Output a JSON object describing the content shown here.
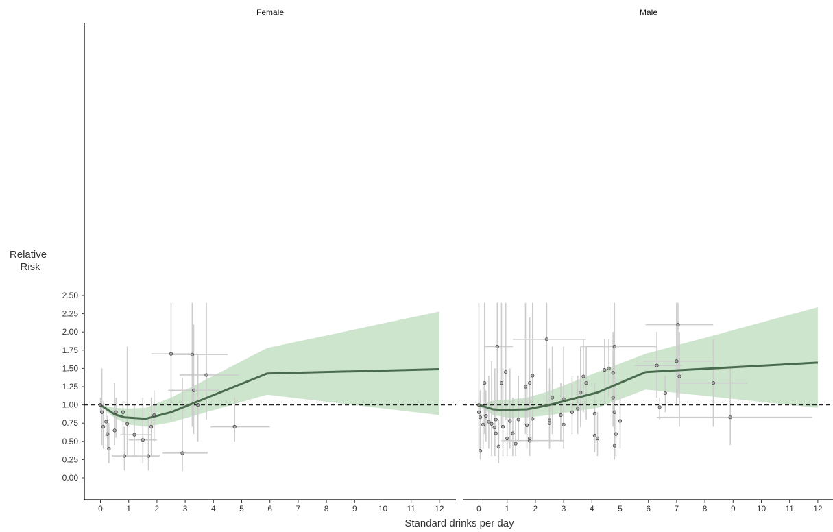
{
  "chart_data": {
    "type": "line",
    "xlabel": "Standard drinks per day",
    "ylabel_lines": [
      "Relative",
      "Risk"
    ],
    "ylim": [
      0,
      2.5
    ],
    "xlim": [
      -0.5,
      12.5
    ],
    "y_ticks": [
      "0.00",
      "0.25",
      "0.50",
      "0.75",
      "1.00",
      "1.25",
      "1.50",
      "1.75",
      "2.00",
      "2.25",
      "2.50"
    ],
    "x_ticks": [
      "0",
      "1",
      "2",
      "3",
      "4",
      "5",
      "6",
      "7",
      "8",
      "9",
      "10",
      "11",
      "12"
    ],
    "reference_line": 1.0,
    "colors": {
      "line": "#4a6b4e",
      "band": "#cde5cd",
      "points": "#777777",
      "error_bars": "#cccccc",
      "reference": "#222222"
    },
    "panels": [
      {
        "title": "Female",
        "curve": {
          "x": [
            0,
            0.5,
            0.85,
            1.6,
            2.5,
            5.9,
            12
          ],
          "y": [
            1.0,
            0.87,
            0.83,
            0.81,
            0.9,
            1.43,
            1.49
          ]
        },
        "band": {
          "x": [
            0,
            0.5,
            1.0,
            1.6,
            2.5,
            5.9,
            12
          ],
          "lower": [
            0.98,
            0.82,
            0.73,
            0.7,
            0.76,
            1.14,
            0.86
          ],
          "upper": [
            1.0,
            0.96,
            0.95,
            0.96,
            1.1,
            1.78,
            2.28
          ]
        },
        "points": [
          {
            "x": 0.0,
            "y": 1.0,
            "yl": 0.9,
            "yu": 1.1
          },
          {
            "x": 0.05,
            "y": 0.9,
            "yl": 0.45,
            "yu": 1.5
          },
          {
            "x": 0.1,
            "y": 0.7,
            "yl": 0.4,
            "yu": 1.05
          },
          {
            "x": 0.2,
            "y": 0.77,
            "yl": 0.55,
            "yu": 1.0
          },
          {
            "x": 0.25,
            "y": 0.6,
            "yl": 0.4,
            "yu": 0.85
          },
          {
            "x": 0.3,
            "y": 0.4,
            "yl": 0.2,
            "yu": 0.75
          },
          {
            "x": 0.5,
            "y": 0.65,
            "yl": 0.45,
            "yu": 1.3
          },
          {
            "x": 0.55,
            "y": 0.9,
            "yl": 0.55,
            "yu": 1.1
          },
          {
            "x": 0.8,
            "y": 0.9,
            "yl": 0.6,
            "yu": 1.05
          },
          {
            "x": 0.85,
            "y": 0.3,
            "yl": 0.1,
            "yu": 0.7,
            "xl": 0.4,
            "xu": 1.3
          },
          {
            "x": 0.95,
            "y": 0.74,
            "yl": 0.3,
            "yu": 1.8
          },
          {
            "x": 1.2,
            "y": 0.59,
            "yl": 0.3,
            "yu": 1.0,
            "xl": 0.7,
            "xu": 1.8
          },
          {
            "x": 1.5,
            "y": 0.52,
            "yl": 0.2,
            "yu": 1.1,
            "xl": 1.0,
            "xu": 2.0
          },
          {
            "x": 1.7,
            "y": 0.3,
            "yl": 0.1,
            "yu": 0.8,
            "xl": 1.1,
            "xu": 2.1
          },
          {
            "x": 1.8,
            "y": 0.7,
            "yl": 0.3,
            "yu": 1.1
          },
          {
            "x": 1.9,
            "y": 0.86,
            "yl": 0.5,
            "yu": 1.2
          },
          {
            "x": 2.5,
            "y": 1.7,
            "yl": 0.8,
            "yu": 2.4,
            "xl": 1.8,
            "xu": 3.2
          },
          {
            "x": 2.9,
            "y": 0.34,
            "yl": 0.09,
            "yu": 1.37,
            "xl": 2.2,
            "xu": 3.8
          },
          {
            "x": 3.25,
            "y": 1.69,
            "yl": 0.7,
            "yu": 2.4,
            "xl": 2.5,
            "xu": 4.5
          },
          {
            "x": 3.3,
            "y": 1.2,
            "yl": 0.6,
            "yu": 2.1,
            "xl": 2.4,
            "xu": 4.2
          },
          {
            "x": 3.45,
            "y": 1.0,
            "yl": 0.5,
            "yu": 1.7
          },
          {
            "x": 3.75,
            "y": 1.41,
            "yl": 0.8,
            "yu": 2.4,
            "xl": 2.8,
            "xu": 4.9
          },
          {
            "x": 4.75,
            "y": 0.7,
            "yl": 0.5,
            "yu": 1.1,
            "xl": 3.9,
            "xu": 6.0
          }
        ]
      },
      {
        "title": "Male",
        "curve": {
          "x": [
            0,
            0.5,
            0.9,
            1.7,
            2.5,
            4.2,
            5.9,
            12
          ],
          "y": [
            1.0,
            0.94,
            0.93,
            0.94,
            1.0,
            1.17,
            1.45,
            1.58
          ]
        },
        "band": {
          "x": [
            0,
            0.5,
            1.0,
            1.7,
            2.5,
            4.2,
            5.9,
            12
          ],
          "lower": [
            0.98,
            0.86,
            0.83,
            0.83,
            0.86,
            0.96,
            1.21,
            0.96
          ],
          "upper": [
            1.0,
            1.06,
            1.07,
            1.1,
            1.19,
            1.45,
            1.7,
            2.34
          ]
        },
        "points": [
          {
            "x": 0.0,
            "y": 1.0,
            "yl": 0.9,
            "yu": 1.1
          },
          {
            "x": 0.0,
            "y": 0.9,
            "yl": 0.4,
            "yu": 2.4
          },
          {
            "x": 0.05,
            "y": 0.83,
            "yl": 0.4,
            "yu": 1.2
          },
          {
            "x": 0.05,
            "y": 0.37,
            "yl": 0.25,
            "yu": 0.6
          },
          {
            "x": 0.15,
            "y": 0.73,
            "yl": 0.4,
            "yu": 1.3
          },
          {
            "x": 0.2,
            "y": 1.3,
            "yl": 0.6,
            "yu": 2.4
          },
          {
            "x": 0.25,
            "y": 0.85,
            "yl": 0.5,
            "yu": 1.2
          },
          {
            "x": 0.35,
            "y": 0.77,
            "yl": 0.4,
            "yu": 1.4
          },
          {
            "x": 0.45,
            "y": 0.74,
            "yl": 0.3,
            "yu": 1.6
          },
          {
            "x": 0.55,
            "y": 0.69,
            "yl": 0.3,
            "yu": 1.5
          },
          {
            "x": 0.6,
            "y": 0.61,
            "yl": 0.3,
            "yu": 1.2
          },
          {
            "x": 0.6,
            "y": 0.8,
            "yl": 0.4,
            "yu": 1.5
          },
          {
            "x": 0.65,
            "y": 1.8,
            "yl": 0.9,
            "yu": 2.4,
            "xl": 0.2,
            "xu": 1.2
          },
          {
            "x": 0.7,
            "y": 0.43,
            "yl": 0.2,
            "yu": 0.8
          },
          {
            "x": 0.8,
            "y": 1.3,
            "yl": 0.7,
            "yu": 2.4
          },
          {
            "x": 0.85,
            "y": 0.7,
            "yl": 0.3,
            "yu": 1.5
          },
          {
            "x": 0.95,
            "y": 1.45,
            "yl": 0.8,
            "yu": 2.4
          },
          {
            "x": 1.0,
            "y": 0.54,
            "yl": 0.3,
            "yu": 0.9
          },
          {
            "x": 1.1,
            "y": 0.78,
            "yl": 0.4,
            "yu": 1.5
          },
          {
            "x": 1.2,
            "y": 0.61,
            "yl": 0.3,
            "yu": 1.1
          },
          {
            "x": 1.3,
            "y": 0.47,
            "yl": 0.3,
            "yu": 0.8
          },
          {
            "x": 1.4,
            "y": 0.8,
            "yl": 0.5,
            "yu": 1.4
          },
          {
            "x": 1.65,
            "y": 1.25,
            "yl": 0.6,
            "yu": 2.4
          },
          {
            "x": 1.7,
            "y": 0.72,
            "yl": 0.4,
            "yu": 1.3
          },
          {
            "x": 1.8,
            "y": 1.3,
            "yl": 0.7,
            "yu": 2.2
          },
          {
            "x": 1.8,
            "y": 0.51,
            "yl": 0.3,
            "yu": 0.9,
            "xl": 0.8,
            "xu": 3.0
          },
          {
            "x": 1.8,
            "y": 0.54,
            "yl": 0.3,
            "yu": 1.0
          },
          {
            "x": 1.9,
            "y": 1.4,
            "yl": 0.8,
            "yu": 2.4
          },
          {
            "x": 1.9,
            "y": 0.81,
            "yl": 0.5,
            "yu": 1.3
          },
          {
            "x": 2.5,
            "y": 0.79,
            "yl": 0.4,
            "yu": 1.5
          },
          {
            "x": 2.5,
            "y": 0.75,
            "yl": 0.4,
            "yu": 1.3
          },
          {
            "x": 2.4,
            "y": 1.9,
            "yl": 1.0,
            "yu": 2.4,
            "xl": 1.2,
            "xu": 3.8
          },
          {
            "x": 2.6,
            "y": 1.1,
            "yl": 0.6,
            "yu": 1.8
          },
          {
            "x": 2.9,
            "y": 0.86,
            "yl": 0.5,
            "yu": 1.3
          },
          {
            "x": 3.0,
            "y": 1.08,
            "yl": 0.6,
            "yu": 1.8
          },
          {
            "x": 3.0,
            "y": 0.73,
            "yl": 0.4,
            "yu": 1.2
          },
          {
            "x": 3.3,
            "y": 0.9,
            "yl": 0.6,
            "yu": 1.4
          },
          {
            "x": 3.5,
            "y": 0.95,
            "yl": 0.6,
            "yu": 1.4
          },
          {
            "x": 3.6,
            "y": 1.17,
            "yl": 0.7,
            "yu": 1.8
          },
          {
            "x": 3.7,
            "y": 1.39,
            "yl": 0.9,
            "yu": 1.9
          },
          {
            "x": 3.8,
            "y": 1.3,
            "yl": 0.8,
            "yu": 1.8
          },
          {
            "x": 4.1,
            "y": 0.88,
            "yl": 0.5,
            "yu": 1.3
          },
          {
            "x": 4.1,
            "y": 0.58,
            "yl": 0.35,
            "yu": 0.9
          },
          {
            "x": 4.2,
            "y": 0.54,
            "yl": 0.3,
            "yu": 0.9
          },
          {
            "x": 4.45,
            "y": 1.48,
            "yl": 1.0,
            "yu": 1.9
          },
          {
            "x": 4.6,
            "y": 1.5,
            "yl": 1.1,
            "yu": 1.9
          },
          {
            "x": 4.75,
            "y": 1.44,
            "yl": 0.9,
            "yu": 2.0
          },
          {
            "x": 4.75,
            "y": 1.1,
            "yl": 0.7,
            "yu": 1.7
          },
          {
            "x": 4.8,
            "y": 0.9,
            "yl": 0.5,
            "yu": 1.4
          },
          {
            "x": 4.8,
            "y": 1.8,
            "yl": 1.0,
            "yu": 2.4,
            "xl": 3.6,
            "xu": 6.3
          },
          {
            "x": 4.8,
            "y": 0.44,
            "yl": 0.25,
            "yu": 0.8
          },
          {
            "x": 4.85,
            "y": 0.6,
            "yl": 0.3,
            "yu": 0.9
          },
          {
            "x": 5.0,
            "y": 0.78,
            "yl": 0.4,
            "yu": 1.1
          },
          {
            "x": 6.3,
            "y": 1.54,
            "yl": 1.1,
            "yu": 2.0,
            "xl": 5.5,
            "xu": 7.2
          },
          {
            "x": 6.4,
            "y": 0.97,
            "yl": 0.8,
            "yu": 1.1
          },
          {
            "x": 6.6,
            "y": 1.16,
            "yl": 0.9,
            "yu": 1.4
          },
          {
            "x": 7.0,
            "y": 1.6,
            "yl": 1.0,
            "yu": 2.4,
            "xl": 5.8,
            "xu": 8.3
          },
          {
            "x": 7.05,
            "y": 2.1,
            "yl": 1.1,
            "yu": 2.4,
            "xl": 5.9,
            "xu": 8.3
          },
          {
            "x": 7.1,
            "y": 1.39,
            "yl": 0.7,
            "yu": 2.0
          },
          {
            "x": 8.3,
            "y": 1.3,
            "yl": 0.7,
            "yu": 1.9,
            "xl": 7.1,
            "xu": 9.5
          },
          {
            "x": 8.9,
            "y": 0.83,
            "yl": 0.45,
            "yu": 1.53,
            "xl": 6.3,
            "xu": 11.8
          }
        ]
      }
    ]
  }
}
